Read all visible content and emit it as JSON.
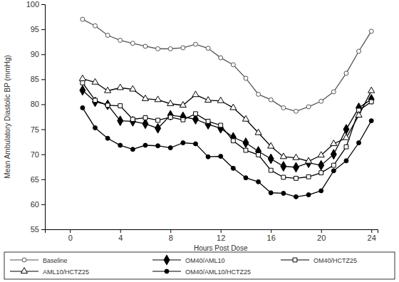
{
  "chart_data": {
    "type": "line",
    "x_label": "Hours Post Dose",
    "y_label": "Mean Ambulatory Diastolic BP (mmHg)",
    "x": [
      1,
      2,
      3,
      4,
      5,
      6,
      7,
      8,
      9,
      10,
      11,
      12,
      13,
      14,
      15,
      16,
      17,
      18,
      19,
      20,
      21,
      22,
      23,
      24
    ],
    "xlim": [
      -2,
      24.5
    ],
    "xticks": [
      0,
      4,
      8,
      12,
      16,
      20,
      24
    ],
    "ylim": [
      55,
      100
    ],
    "yticks": [
      55,
      60,
      65,
      70,
      75,
      80,
      85,
      90,
      95,
      100
    ],
    "legend": "bottom",
    "series": [
      {
        "name": "Baseline",
        "color": "#555555",
        "marker": "open-circle",
        "values": [
          97,
          95.7,
          93.8,
          92.8,
          92.2,
          91.6,
          91.1,
          91.1,
          91.3,
          92,
          91.2,
          89.3,
          87.9,
          85.2,
          82,
          80.9,
          79.3,
          78.6,
          79.5,
          80.6,
          82.5,
          86.2,
          90.6,
          94.6
        ]
      },
      {
        "name": "OM40/AML10",
        "color": "#000000",
        "marker": "diamond",
        "values": [
          82.8,
          80.5,
          79.9,
          76.7,
          76.6,
          76.1,
          75.2,
          77.8,
          77.5,
          77.0,
          76.0,
          75.2,
          73.4,
          72.3,
          70.6,
          69.1,
          67.6,
          67.4,
          68.3,
          67.8,
          70.0,
          75.0,
          79.3,
          81.0
        ]
      },
      {
        "name": "OM40/HCTZ25",
        "color": "#000000",
        "marker": "open-square",
        "values": [
          84.3,
          80.8,
          79.8,
          79.7,
          77.0,
          77.3,
          76.8,
          77.4,
          76.9,
          78.1,
          76.6,
          75.8,
          72.7,
          70.8,
          69.9,
          66.8,
          65.4,
          65.2,
          65.5,
          66.3,
          67.8,
          71.5,
          78.8,
          80.5
        ]
      },
      {
        "name": "AML10/HCTZ25",
        "color": "#000000",
        "marker": "open-triangle",
        "values": [
          85.1,
          84.4,
          82.7,
          83.3,
          83,
          81.1,
          80.9,
          80.1,
          79.8,
          81.9,
          80.8,
          80.7,
          79.3,
          77,
          74.3,
          71.6,
          69.5,
          69.3,
          68.6,
          69.8,
          72.1,
          73.3,
          77.8,
          82.7
        ]
      },
      {
        "name": "OM40/AML10/HCTZ25",
        "color": "#000000",
        "marker": "circle",
        "values": [
          79.3,
          75.3,
          73.2,
          71.8,
          71.0,
          71.8,
          71.7,
          71.3,
          72.3,
          72.1,
          69.5,
          69.6,
          67.2,
          65.3,
          64.5,
          62.3,
          62.2,
          61.5,
          61.9,
          62.7,
          66.7,
          68.7,
          72.3,
          76.7
        ]
      }
    ]
  }
}
